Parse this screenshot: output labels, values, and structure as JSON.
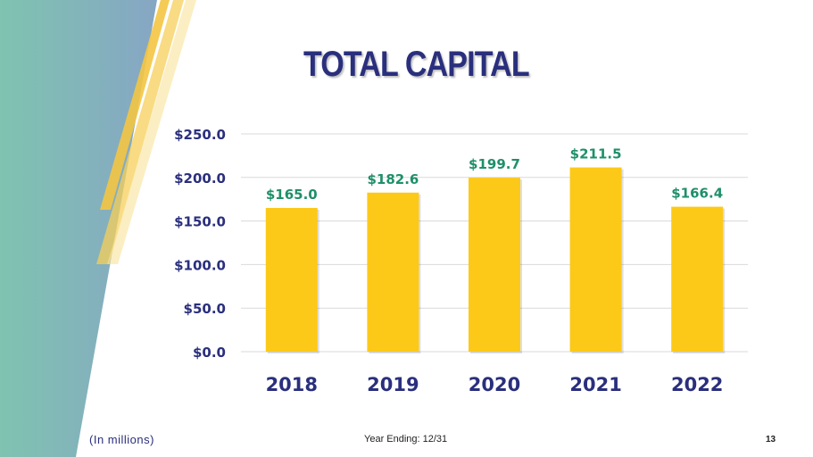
{
  "slide": {
    "title": "TOTAL CAPITAL",
    "units_note": "(In millions)",
    "year_ending": "Year Ending: 12/31",
    "page_number": "13"
  },
  "colors": {
    "title": "#2a2f7d",
    "bar": "#fcc918",
    "data_label": "#1f8f6a",
    "axis_label": "#2a2f7d",
    "grid": "#d9d9d9"
  },
  "chart_data": {
    "type": "bar",
    "title": "TOTAL CAPITAL",
    "categories": [
      "2018",
      "2019",
      "2020",
      "2021",
      "2022"
    ],
    "values": [
      165.0,
      182.6,
      199.7,
      211.5,
      166.4
    ],
    "value_labels": [
      "$165.0",
      "$182.6",
      "$199.7",
      "$211.5",
      "$166.4"
    ],
    "yticks": [
      0,
      50,
      100,
      150,
      200,
      250
    ],
    "ytick_labels": [
      "$0.0",
      "$50.0",
      "$100.0",
      "$150.0",
      "$200.0",
      "$250.0"
    ],
    "ylim": [
      0,
      250
    ],
    "xlabel": "",
    "ylabel": "",
    "grid": true,
    "legend": "none"
  }
}
